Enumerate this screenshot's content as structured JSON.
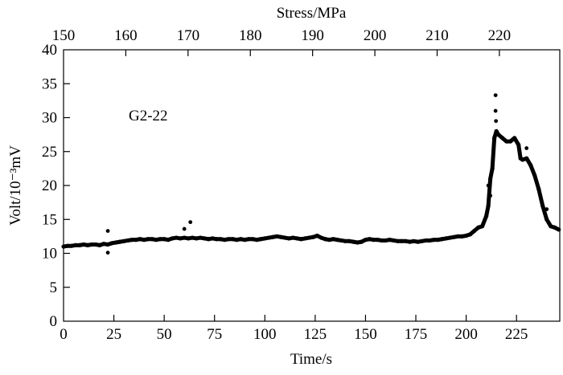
{
  "chart_data": {
    "type": "scatter",
    "title": "",
    "annotation": "G2-22",
    "xlabel": "Time/s",
    "ylabel": "Volt/10⁻³mV",
    "top_xlabel": "Stress/MPa",
    "xlim": [
      0,
      246.5
    ],
    "ylim": [
      0,
      40
    ],
    "top_xlim": [
      150,
      229.7
    ],
    "xticks": [
      0,
      25,
      50,
      75,
      100,
      125,
      150,
      175,
      200,
      225
    ],
    "yticks": [
      0,
      5,
      10,
      15,
      20,
      25,
      30,
      35,
      40
    ],
    "top_xticks": [
      150,
      160,
      170,
      180,
      190,
      200,
      210,
      220
    ],
    "grid": false,
    "color": "#000000",
    "series": [
      {
        "name": "G2-22",
        "points": [
          [
            0,
            11.0
          ],
          [
            2,
            11.1
          ],
          [
            4,
            11.1
          ],
          [
            6,
            11.2
          ],
          [
            8,
            11.2
          ],
          [
            10,
            11.3
          ],
          [
            12,
            11.2
          ],
          [
            14,
            11.3
          ],
          [
            16,
            11.3
          ],
          [
            18,
            11.2
          ],
          [
            20,
            11.4
          ],
          [
            22,
            11.3
          ],
          [
            24,
            11.5
          ],
          [
            26,
            11.6
          ],
          [
            28,
            11.7
          ],
          [
            30,
            11.8
          ],
          [
            32,
            11.9
          ],
          [
            34,
            12.0
          ],
          [
            36,
            12.0
          ],
          [
            38,
            12.1
          ],
          [
            40,
            12.0
          ],
          [
            42,
            12.1
          ],
          [
            44,
            12.1
          ],
          [
            46,
            12.0
          ],
          [
            48,
            12.1
          ],
          [
            50,
            12.1
          ],
          [
            52,
            12.0
          ],
          [
            54,
            12.2
          ],
          [
            56,
            12.3
          ],
          [
            58,
            12.2
          ],
          [
            60,
            12.3
          ],
          [
            62,
            12.2
          ],
          [
            64,
            12.3
          ],
          [
            66,
            12.2
          ],
          [
            68,
            12.3
          ],
          [
            70,
            12.2
          ],
          [
            72,
            12.1
          ],
          [
            74,
            12.2
          ],
          [
            76,
            12.1
          ],
          [
            78,
            12.1
          ],
          [
            80,
            12.0
          ],
          [
            82,
            12.1
          ],
          [
            84,
            12.1
          ],
          [
            86,
            12.0
          ],
          [
            88,
            12.1
          ],
          [
            90,
            12.0
          ],
          [
            92,
            12.1
          ],
          [
            94,
            12.1
          ],
          [
            96,
            12.0
          ],
          [
            98,
            12.1
          ],
          [
            100,
            12.2
          ],
          [
            102,
            12.3
          ],
          [
            104,
            12.4
          ],
          [
            106,
            12.5
          ],
          [
            108,
            12.4
          ],
          [
            110,
            12.3
          ],
          [
            112,
            12.2
          ],
          [
            114,
            12.3
          ],
          [
            116,
            12.2
          ],
          [
            118,
            12.1
          ],
          [
            120,
            12.2
          ],
          [
            122,
            12.3
          ],
          [
            124,
            12.4
          ],
          [
            126,
            12.6
          ],
          [
            128,
            12.3
          ],
          [
            130,
            12.1
          ],
          [
            132,
            12.0
          ],
          [
            134,
            12.1
          ],
          [
            136,
            12.0
          ],
          [
            138,
            11.9
          ],
          [
            140,
            11.8
          ],
          [
            142,
            11.8
          ],
          [
            144,
            11.7
          ],
          [
            146,
            11.6
          ],
          [
            148,
            11.7
          ],
          [
            150,
            12.0
          ],
          [
            152,
            12.1
          ],
          [
            154,
            12.0
          ],
          [
            156,
            12.0
          ],
          [
            158,
            11.9
          ],
          [
            160,
            11.9
          ],
          [
            162,
            12.0
          ],
          [
            164,
            11.9
          ],
          [
            166,
            11.8
          ],
          [
            168,
            11.8
          ],
          [
            170,
            11.8
          ],
          [
            172,
            11.7
          ],
          [
            174,
            11.8
          ],
          [
            176,
            11.7
          ],
          [
            178,
            11.8
          ],
          [
            180,
            11.9
          ],
          [
            182,
            11.9
          ],
          [
            184,
            12.0
          ],
          [
            186,
            12.0
          ],
          [
            188,
            12.1
          ],
          [
            190,
            12.2
          ],
          [
            192,
            12.3
          ],
          [
            194,
            12.4
          ],
          [
            196,
            12.5
          ],
          [
            198,
            12.5
          ],
          [
            200,
            12.6
          ],
          [
            202,
            12.8
          ],
          [
            204,
            13.3
          ],
          [
            206,
            13.8
          ],
          [
            208,
            14.0
          ],
          [
            210,
            15.5
          ],
          [
            211,
            17.0
          ],
          [
            212,
            21.0
          ],
          [
            213,
            22.5
          ],
          [
            214,
            27.0
          ],
          [
            215,
            28.0
          ],
          [
            216,
            27.5
          ],
          [
            218,
            27.0
          ],
          [
            220,
            26.5
          ],
          [
            222,
            26.5
          ],
          [
            224,
            27.0
          ],
          [
            226,
            26.0
          ],
          [
            227,
            24.0
          ],
          [
            228,
            23.8
          ],
          [
            230,
            24.0
          ],
          [
            232,
            23.0
          ],
          [
            234,
            21.5
          ],
          [
            236,
            19.5
          ],
          [
            238,
            17.0
          ],
          [
            240,
            15.0
          ],
          [
            242,
            14.0
          ],
          [
            244,
            13.8
          ],
          [
            246,
            13.5
          ]
        ]
      }
    ],
    "outliers": [
      [
        22,
        13.3
      ],
      [
        22,
        10.1
      ],
      [
        60,
        13.6
      ],
      [
        63,
        14.6
      ],
      [
        214.6,
        33.3
      ],
      [
        214.6,
        31.0
      ],
      [
        214.8,
        29.5
      ],
      [
        212,
        18.5
      ],
      [
        211,
        20.0
      ],
      [
        230,
        25.5
      ],
      [
        240,
        16.5
      ]
    ]
  }
}
